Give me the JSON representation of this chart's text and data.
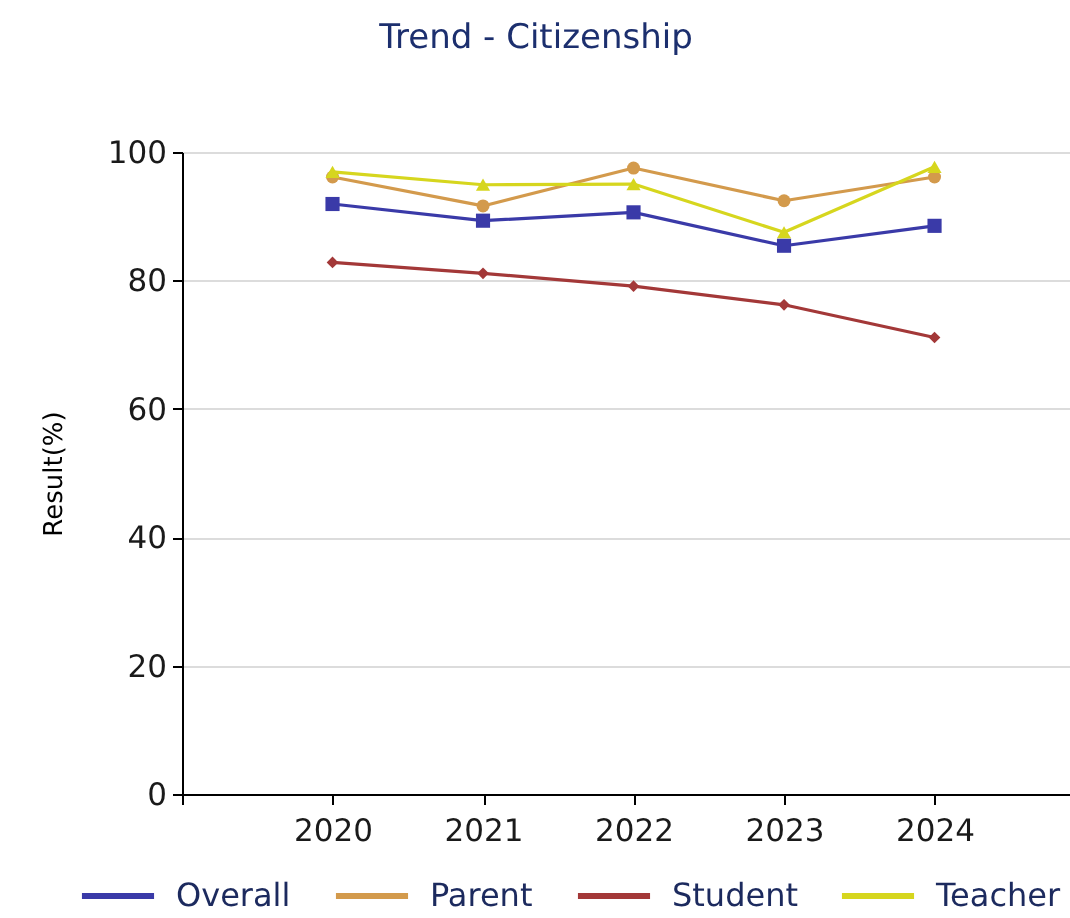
{
  "chart_data": {
    "type": "line",
    "title": "Trend - Citizenship",
    "ylabel": "Result(%)",
    "x": [
      2020,
      2021,
      2022,
      2023,
      2024
    ],
    "xlim": [
      2019,
      2024.9
    ],
    "xticks": [
      {
        "value": 2019,
        "label": null
      },
      2020,
      2021,
      2022,
      2023,
      2024
    ],
    "ylim": [
      0,
      100
    ],
    "yticks": [
      0,
      20,
      40,
      60,
      80,
      100
    ],
    "grid": "y",
    "legend": "bottom",
    "series": [
      {
        "name": "Overall",
        "color": "#3a3aa8",
        "marker": "square",
        "values": [
          91.9,
          89.3,
          90.6,
          85.4,
          88.5
        ]
      },
      {
        "name": "Parent",
        "color": "#d39a4c",
        "marker": "circle",
        "values": [
          96.1,
          91.6,
          97.5,
          92.4,
          96.1
        ]
      },
      {
        "name": "Student",
        "color": "#a33838",
        "marker": "diamond",
        "values": [
          82.8,
          81.1,
          79.1,
          76.2,
          71.1
        ]
      },
      {
        "name": "Teacher",
        "color": "#d6d61e",
        "marker": "triangle",
        "values": [
          96.9,
          94.9,
          95.0,
          87.5,
          97.7
        ]
      }
    ]
  }
}
